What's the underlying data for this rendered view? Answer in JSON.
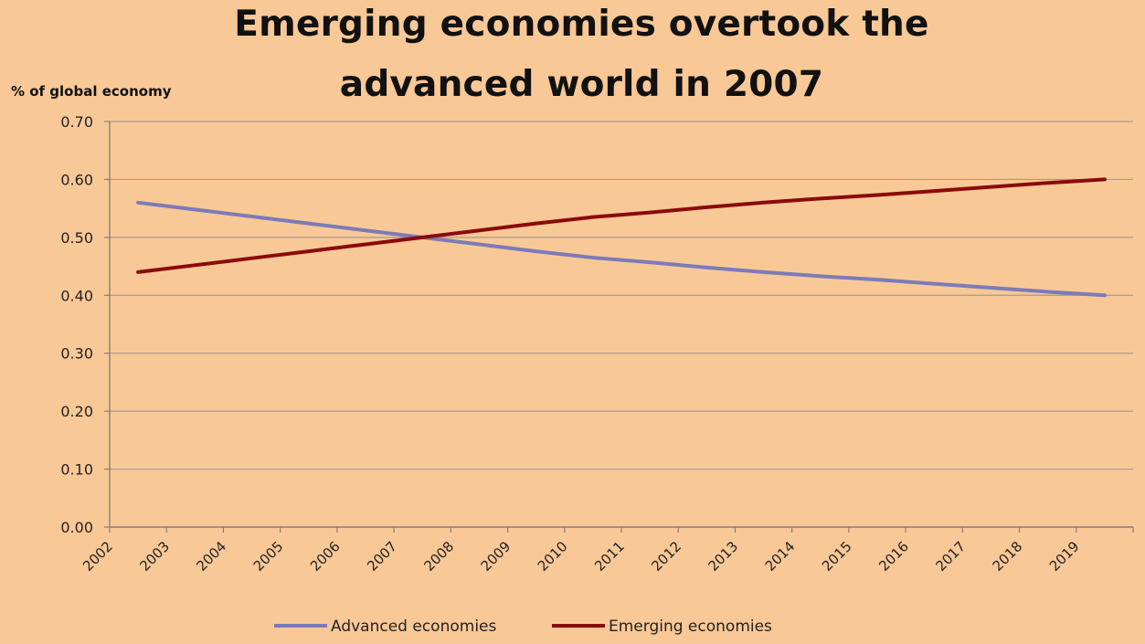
{
  "chart_data": {
    "type": "line",
    "title_line_1": "Emerging economies overtook the",
    "title_line_2": "advanced world in 2007",
    "ylabel": "% of global economy",
    "xlabel": "",
    "ylim": [
      0,
      0.7
    ],
    "y_ticks": [
      "0.00",
      "0.10",
      "0.20",
      "0.30",
      "0.40",
      "0.50",
      "0.60",
      "0.70"
    ],
    "y_tick_values": [
      0,
      0.1,
      0.2,
      0.3,
      0.4,
      0.5,
      0.6,
      0.7
    ],
    "categories": [
      "2002",
      "2003",
      "2004",
      "2005",
      "2006",
      "2007",
      "2008",
      "2009",
      "2010",
      "2011",
      "2012",
      "2013",
      "2014",
      "2015",
      "2016",
      "2017",
      "2018",
      "2019"
    ],
    "grid": true,
    "legend_placement": "bottom",
    "series": [
      {
        "name": "Advanced economies",
        "color": "#7b7bb8",
        "values": [
          0.56,
          0.548,
          0.536,
          0.524,
          0.512,
          0.5,
          0.488,
          0.476,
          0.465,
          0.457,
          0.448,
          0.44,
          0.433,
          0.427,
          0.42,
          0.413,
          0.406,
          0.4
        ]
      },
      {
        "name": "Emerging economies",
        "color": "#8b0a0a",
        "values": [
          0.44,
          0.452,
          0.464,
          0.476,
          0.488,
          0.5,
          0.512,
          0.524,
          0.535,
          0.543,
          0.552,
          0.56,
          0.567,
          0.573,
          0.58,
          0.587,
          0.594,
          0.6
        ]
      }
    ]
  }
}
